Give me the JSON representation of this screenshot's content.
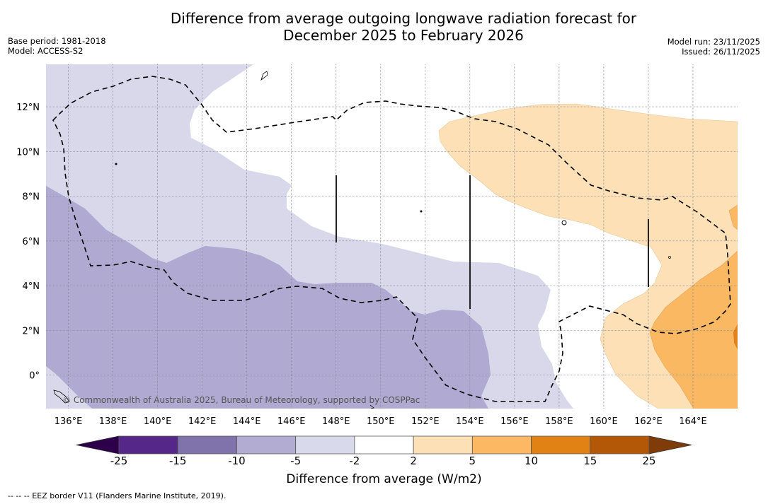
{
  "header": {
    "title_line1": "Difference from average outgoing longwave radiation forecast for",
    "title_line2": "December 2025 to February 2026",
    "base_period": "Base period: 1981-2018",
    "model": "Model: ACCESS-S2",
    "model_run": "Model run: 23/11/2025",
    "issued": "Issued: 26/11/2025"
  },
  "map": {
    "extent": {
      "lon_min": 135,
      "lon_max": 166,
      "lat_min": -1.5,
      "lat_max": 13.9
    },
    "lon_ticks": [
      {
        "value": 136,
        "label": "136°E"
      },
      {
        "value": 138,
        "label": "138°E"
      },
      {
        "value": 140,
        "label": "140°E"
      },
      {
        "value": 142,
        "label": "142°E"
      },
      {
        "value": 144,
        "label": "144°E"
      },
      {
        "value": 146,
        "label": "146°E"
      },
      {
        "value": 148,
        "label": "148°E"
      },
      {
        "value": 150,
        "label": "150°E"
      },
      {
        "value": 152,
        "label": "152°E"
      },
      {
        "value": 154,
        "label": "154°E"
      },
      {
        "value": 156,
        "label": "156°E"
      },
      {
        "value": 158,
        "label": "158°E"
      },
      {
        "value": 160,
        "label": "160°E"
      },
      {
        "value": 162,
        "label": "162°E"
      },
      {
        "value": 164,
        "label": "164°E"
      }
    ],
    "lat_ticks": [
      {
        "value": 12,
        "label": "12°N"
      },
      {
        "value": 10,
        "label": "10°N"
      },
      {
        "value": 8,
        "label": "8°N"
      },
      {
        "value": 6,
        "label": "6°N"
      },
      {
        "value": 4,
        "label": "4°N"
      },
      {
        "value": 2,
        "label": "2°N"
      },
      {
        "value": 0,
        "label": "0°"
      }
    ],
    "copyright": "© Commonwealth of Australia 2025, Bureau of Meteorology, supported by COSPPac",
    "regions": [
      {
        "name": "neutral-background",
        "category": "-2 to 2",
        "color": "#ffffff"
      },
      {
        "name": "light-purple-region",
        "category": "-5 to -2",
        "color": "#d8d8ea"
      },
      {
        "name": "mid-purple-region",
        "category": "-10 to -5",
        "color": "#b0a9d1"
      },
      {
        "name": "light-orange-region",
        "category": "2 to 5",
        "color": "#fde0b6"
      },
      {
        "name": "mid-orange-region",
        "category": "5 to 10",
        "color": "#fbb862"
      },
      {
        "name": "dark-orange-region",
        "category": "10 to 15",
        "color": "#e1821b"
      }
    ]
  },
  "colorbar": {
    "title": "Difference from average (W/m2)",
    "bounds": [
      "-25",
      "-15",
      "-10",
      "-5",
      "-2",
      "2",
      "5",
      "10",
      "15",
      "25"
    ],
    "colors": [
      "#542788",
      "#8073ac",
      "#b2abd2",
      "#d8daeb",
      "#ffffff",
      "#fee0b6",
      "#fdb863",
      "#e08214",
      "#b35806"
    ],
    "under_color": "#2d004b",
    "over_color": "#7f3b08"
  },
  "footnote": "--  --  -- EEZ border V11 (Flanders Marine Institute, 2019)."
}
